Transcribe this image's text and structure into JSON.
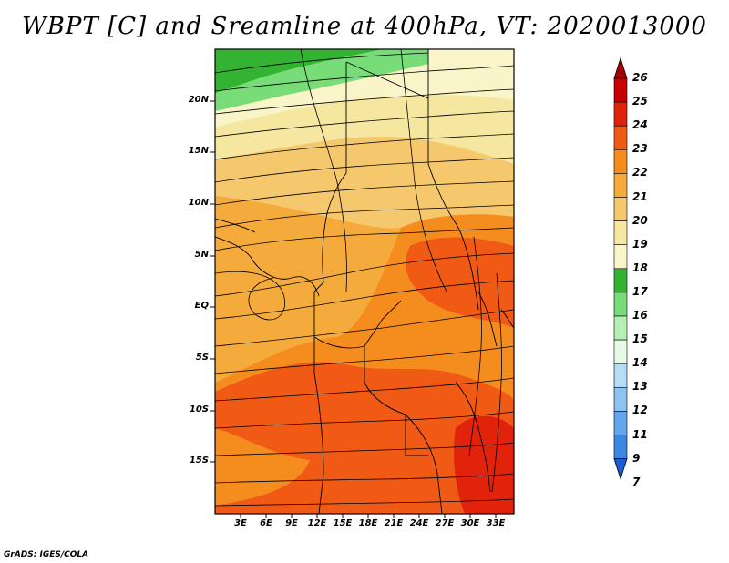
{
  "title": "WBPT [C] and Sreamline at 400hPa, VT: 2020013000",
  "credit": "GrADS: IGES/COLA",
  "map": {
    "lon_range": [
      -2,
      36
    ],
    "lat_range": [
      -21,
      25
    ],
    "lat_ticks": [
      "20N",
      "15N",
      "10N",
      "5N",
      "EQ",
      "5S",
      "10S",
      "15S"
    ],
    "lat_values": [
      20,
      15,
      10,
      5,
      0,
      -5,
      -10,
      -15
    ],
    "lon_ticks": [
      "3E",
      "6E",
      "9E",
      "12E",
      "15E",
      "18E",
      "21E",
      "24E",
      "27E",
      "30E",
      "33E"
    ],
    "lon_values": [
      3,
      6,
      9,
      12,
      15,
      18,
      21,
      24,
      27,
      30,
      33
    ],
    "field": "WBPT",
    "units": "C",
    "level": "400hPa",
    "valid_time": "2020013000"
  },
  "colorbar": {
    "labels": [
      "26",
      "25",
      "24",
      "23",
      "22",
      "21",
      "20",
      "19",
      "18",
      "17",
      "16",
      "15",
      "14",
      "13",
      "12",
      "11",
      "9",
      "7"
    ],
    "colors": [
      "#a50000",
      "#c80000",
      "#e0230a",
      "#f05a14",
      "#f58c1e",
      "#f5aa3c",
      "#f5c86e",
      "#f5e6a0",
      "#faf5c8",
      "#32b432",
      "#78dc78",
      "#b4f0b4",
      "#e6fae6",
      "#b4dcf5",
      "#8cc3f0",
      "#64a5eb",
      "#3c87e1",
      "#1e5ad2"
    ]
  }
}
